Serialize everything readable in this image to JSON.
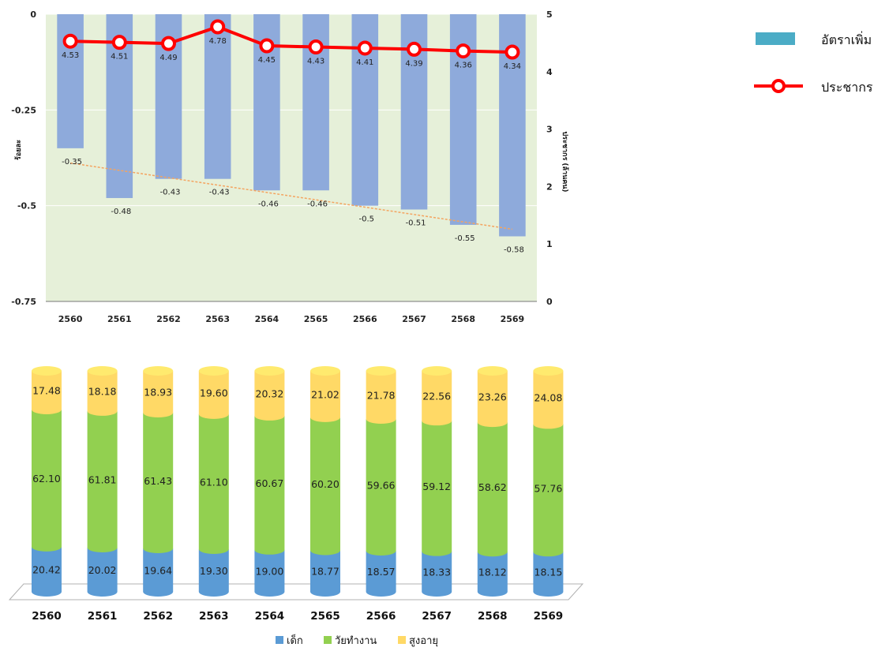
{
  "colors": {
    "plot_bg": "#e6f0d9",
    "bar": "#8eaadb",
    "line": "#ff0000",
    "trend": "#f4a460",
    "legend_bar": "#4bacc6",
    "child": "#5b9bd5",
    "working": "#92d050",
    "elderly": "#ffd966"
  },
  "chart_data": [
    {
      "type": "bar",
      "categories": [
        "2560",
        "2561",
        "2562",
        "2563",
        "2564",
        "2565",
        "2566",
        "2567",
        "2568",
        "2569"
      ],
      "series": [
        {
          "name": "อัตราเพิ่ม",
          "type": "bar",
          "axis": "left",
          "values": [
            -0.35,
            -0.48,
            -0.43,
            -0.43,
            -0.46,
            -0.46,
            -0.5,
            -0.51,
            -0.55,
            -0.58
          ]
        },
        {
          "name": "ประชากร",
          "type": "line",
          "axis": "right",
          "values": [
            4.53,
            4.51,
            4.49,
            4.78,
            4.45,
            4.43,
            4.41,
            4.39,
            4.36,
            4.34
          ]
        }
      ],
      "value_labels": {
        "bars": [
          "-0.35",
          "-0.48",
          "-0.43",
          "-0.43",
          "-0.46",
          "-0.46",
          "-0.5",
          "-0.51",
          "-0.55",
          "-0.58"
        ],
        "line": [
          "4.53",
          "4.51",
          "4.49",
          "4.78",
          "4.45",
          "4.43",
          "4.41",
          "4.39",
          "4.36",
          "4.34"
        ]
      },
      "trendline": "linear",
      "ylim_left": [
        -0.75,
        0
      ],
      "yticks_left": [
        "0",
        "-0.25",
        "-0.5",
        "-0.75"
      ],
      "ylim_right": [
        0,
        5
      ],
      "yticks_right": [
        "5",
        "4",
        "3",
        "2",
        "1",
        "0"
      ],
      "ylabel_left": "ร้อยละ",
      "ylabel_right": "ประชากร (ล้านคน)",
      "legend": [
        "อัตราเพิ่ม",
        "ประชากร"
      ],
      "legend_position": "right",
      "grid": true
    },
    {
      "type": "bar",
      "stacked": true,
      "style": "3d-cylinder",
      "categories": [
        "2560",
        "2561",
        "2562",
        "2563",
        "2564",
        "2565",
        "2566",
        "2567",
        "2568",
        "2569"
      ],
      "series": [
        {
          "name": "เด็ก",
          "values": [
            20.42,
            20.02,
            19.64,
            19.3,
            19.0,
            18.77,
            18.57,
            18.33,
            18.12,
            18.15
          ],
          "labels": [
            "20.42",
            "20.02",
            "19.64",
            "19.30",
            "19.00",
            "18.77",
            "18.57",
            "18.33",
            "18.12",
            "18.15"
          ]
        },
        {
          "name": "วัยทำงาน",
          "values": [
            62.1,
            61.81,
            61.43,
            61.1,
            60.67,
            60.2,
            59.66,
            59.12,
            58.62,
            57.76
          ],
          "labels": [
            "62.10",
            "61.81",
            "61.43",
            "61.10",
            "60.67",
            "60.20",
            "59.66",
            "59.12",
            "58.62",
            "57.76"
          ]
        },
        {
          "name": "สูงอายุ",
          "values": [
            17.48,
            18.18,
            18.93,
            19.6,
            20.32,
            21.02,
            21.78,
            22.56,
            23.26,
            24.08
          ],
          "labels": [
            "17.48",
            "18.18",
            "18.93",
            "19.60",
            "20.32",
            "21.02",
            "21.78",
            "22.56",
            "23.26",
            "24.08"
          ]
        }
      ],
      "legend": [
        "เด็ก",
        "วัยทำงาน",
        "สูงอายุ"
      ],
      "legend_position": "bottom"
    }
  ]
}
